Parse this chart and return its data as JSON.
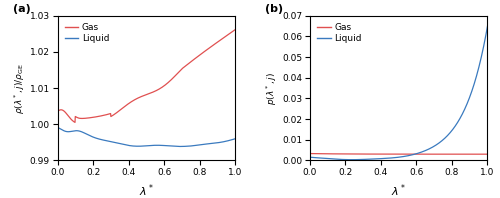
{
  "panel_a": {
    "xlim": [
      0,
      1
    ],
    "ylim": [
      0.99,
      1.03
    ],
    "yticks": [
      0.99,
      1.0,
      1.01,
      1.02,
      1.03
    ],
    "xticks": [
      0.0,
      0.2,
      0.4,
      0.6,
      0.8,
      1.0
    ],
    "gas_color": "#e05050",
    "liquid_color": "#3a7abf",
    "legend_labels": [
      "Gas",
      "Liquid"
    ]
  },
  "panel_b": {
    "xlim": [
      0,
      1
    ],
    "ylim": [
      0,
      0.07
    ],
    "yticks": [
      0.0,
      0.01,
      0.02,
      0.03,
      0.04,
      0.05,
      0.06,
      0.07
    ],
    "xticks": [
      0.0,
      0.2,
      0.4,
      0.6,
      0.8,
      1.0
    ],
    "gas_color": "#e05050",
    "liquid_color": "#3a7abf",
    "legend_labels": [
      "Gas",
      "Liquid"
    ]
  }
}
